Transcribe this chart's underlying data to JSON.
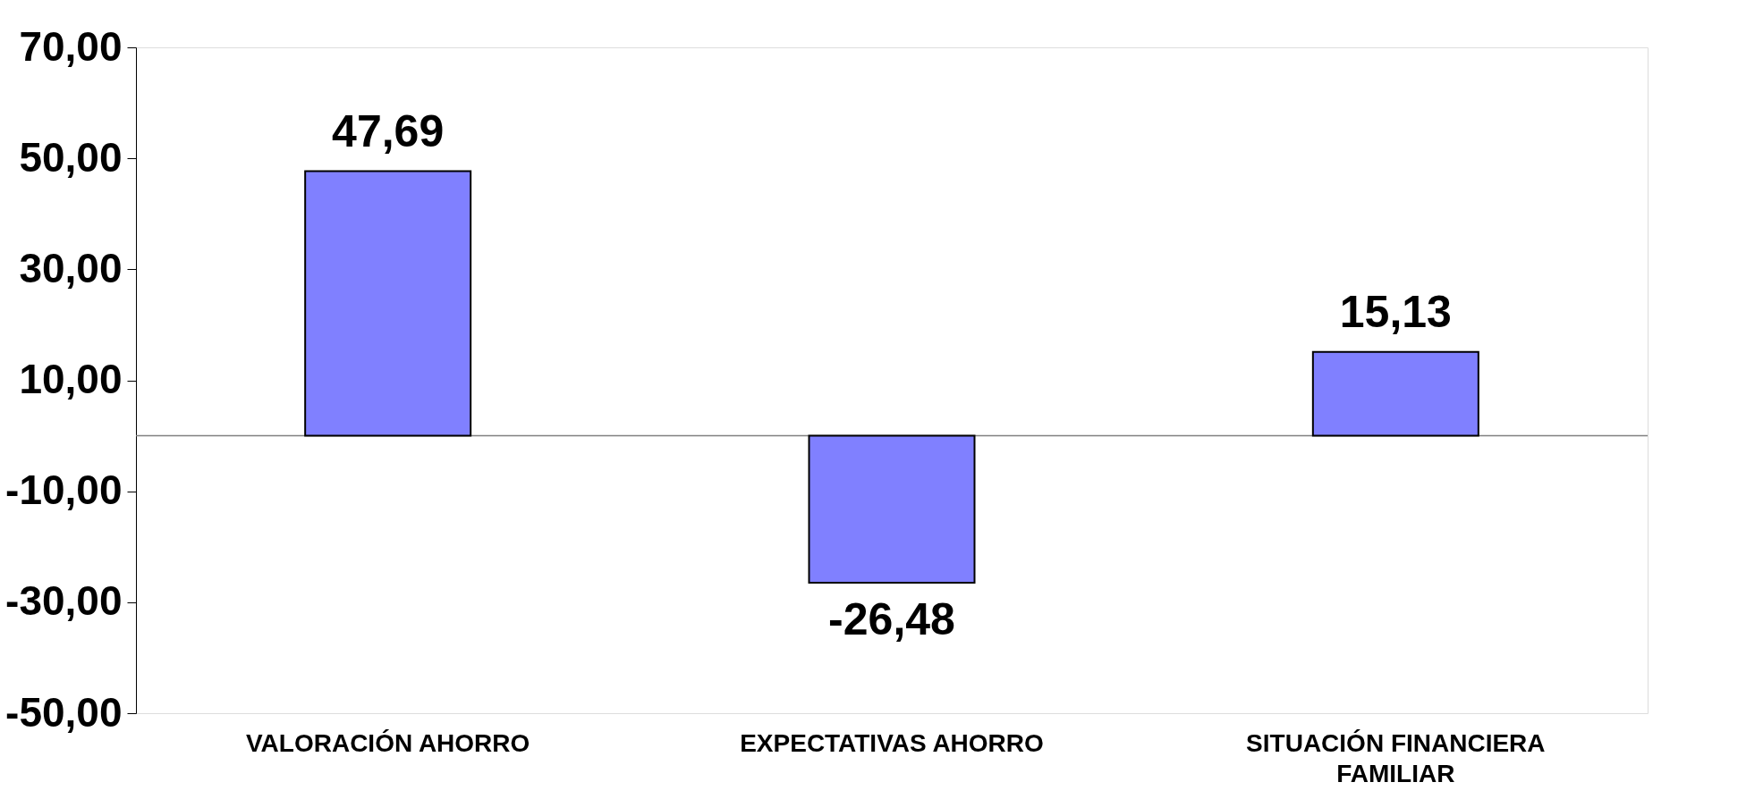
{
  "chart_data": {
    "type": "bar",
    "categories": [
      "VALORACIÓN AHORRO",
      "EXPECTATIVAS AHORRO",
      "SITUACIÓN FINANCIERA FAMILIAR"
    ],
    "values": [
      47.69,
      -26.48,
      15.13
    ],
    "value_labels": [
      "47,69",
      "-26,48",
      "15,13"
    ],
    "color": "#8080ff",
    "ylim": [
      -50,
      70
    ],
    "yticks": [
      {
        "value": -50,
        "label": "-50,00"
      },
      {
        "value": -30,
        "label": "-30,00"
      },
      {
        "value": -10,
        "label": "-10,00"
      },
      {
        "value": 10,
        "label": "10,00"
      },
      {
        "value": 30,
        "label": "30,00"
      },
      {
        "value": 50,
        "label": "50,00"
      },
      {
        "value": 70,
        "label": "70,00"
      }
    ],
    "ref_lines": [
      {
        "axis": "y",
        "value": 0,
        "label": null,
        "color": "#808080"
      }
    ],
    "grid": false
  }
}
